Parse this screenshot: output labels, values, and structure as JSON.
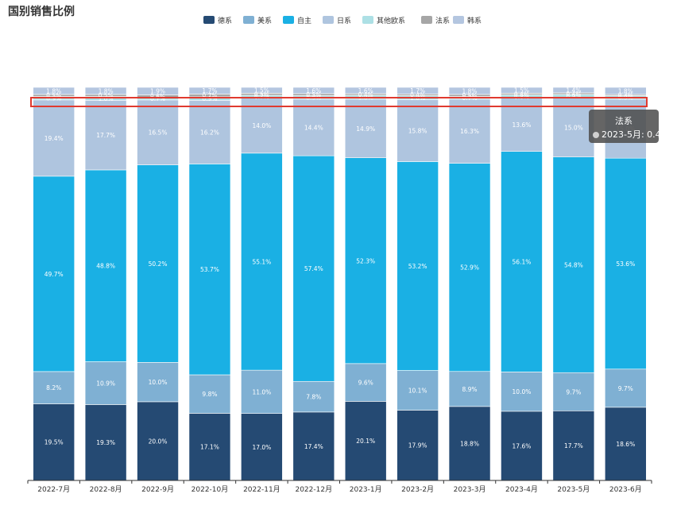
{
  "title": "国别销售比例",
  "tooltip": {
    "series": "法系",
    "row": "2023-5月: 0.4"
  },
  "chart_data": {
    "type": "bar",
    "stacked": true,
    "title": "国别销售比例",
    "categories": [
      "2022-7月",
      "2022-8月",
      "2022-9月",
      "2022-10月",
      "2022-11月",
      "2022-12月",
      "2023-1月",
      "2023-2月",
      "2023-3月",
      "2023-4月",
      "2023-5月",
      "2023-6月"
    ],
    "legend_position": "top",
    "series": [
      {
        "name": "德系",
        "color": "#254a73",
        "values": [
          19.5,
          19.3,
          20.0,
          17.1,
          17.0,
          17.4,
          20.1,
          17.9,
          18.8,
          17.6,
          17.7,
          18.6
        ]
      },
      {
        "name": "美系",
        "color": "#7fb0d3",
        "values": [
          8.2,
          10.9,
          10.0,
          9.8,
          11.0,
          7.8,
          9.6,
          10.1,
          8.9,
          10.0,
          9.7,
          9.7
        ]
      },
      {
        "name": "自主",
        "color": "#1ab0e4",
        "values": [
          49.7,
          48.8,
          50.2,
          53.7,
          55.1,
          57.4,
          52.3,
          53.2,
          52.9,
          56.1,
          54.8,
          53.6
        ]
      },
      {
        "name": "日系",
        "color": "#afc5df",
        "values": [
          19.4,
          17.7,
          16.5,
          16.2,
          14.0,
          14.4,
          14.9,
          15.8,
          16.3,
          13.6,
          15.0,
          15.0
        ]
      },
      {
        "name": "其他欧系",
        "color": "#ade0e5",
        "values": [
          0.9,
          1.0,
          0.7,
          0.9,
          0.7,
          0.9,
          1.0,
          1.0,
          0.7,
          0.8,
          0.9,
          0.9
        ]
      },
      {
        "name": "法系",
        "color": "#a6a6a6",
        "values": [
          0.5,
          0.5,
          0.6,
          0.7,
          0.5,
          0.5,
          0.4,
          0.4,
          0.5,
          0.4,
          0.4,
          0.3
        ]
      },
      {
        "name": "韩系",
        "color": "#b4c6e0",
        "values": [
          1.8,
          1.8,
          1.9,
          1.7,
          1.5,
          1.6,
          1.6,
          1.7,
          1.8,
          1.5,
          1.4,
          1.8
        ]
      }
    ],
    "highlighted_series": "法系",
    "grid": false
  }
}
